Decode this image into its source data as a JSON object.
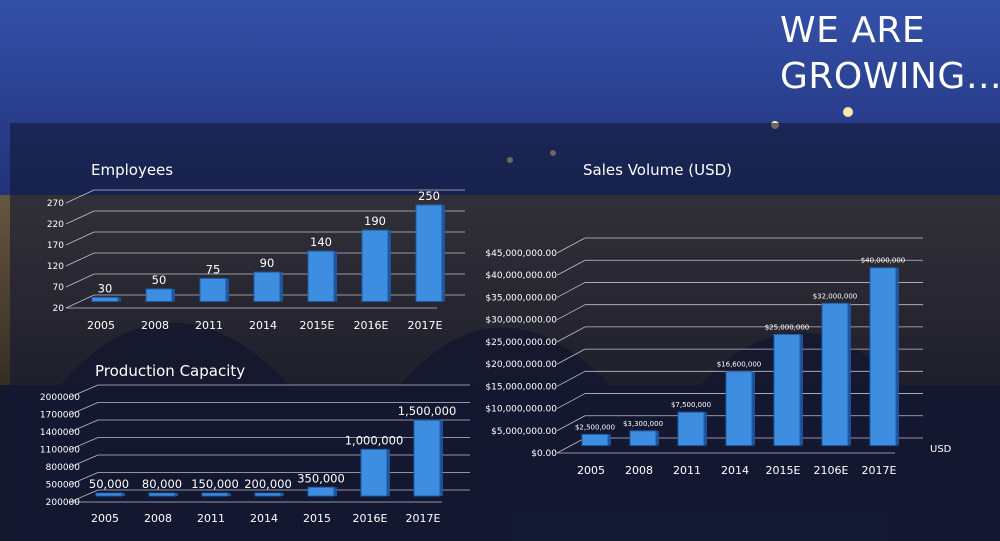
{
  "slide": {
    "title_line1": "WE ARE",
    "title_line2": "GROWING…"
  },
  "colors": {
    "bar_fill": "#3d8de0",
    "bar_edge": "#1f5aa6",
    "grid": "#d8dce6",
    "text": "#ffffff"
  },
  "chart_data": [
    {
      "id": "employees",
      "type": "bar",
      "title": "Employees",
      "categories": [
        "2005",
        "2008",
        "2011",
        "2014",
        "2015E",
        "2016E",
        "2017E"
      ],
      "values": [
        30,
        50,
        75,
        90,
        140,
        190,
        250
      ],
      "data_labels": [
        "30",
        "50",
        "75",
        "90",
        "140",
        "190",
        "250"
      ],
      "yticks": [
        "20",
        "70",
        "120",
        "170",
        "220",
        "270"
      ],
      "ylim": [
        20,
        270
      ],
      "grid": true
    },
    {
      "id": "production",
      "type": "bar",
      "title": "Production Capacity",
      "categories": [
        "2005",
        "2008",
        "2011",
        "2014",
        "2015",
        "2016E",
        "2017E"
      ],
      "values": [
        50000,
        80000,
        150000,
        200000,
        350000,
        1000000,
        1500000
      ],
      "data_labels": [
        "50,000",
        "80,000",
        "150,000",
        "200,000",
        "350,000",
        "1,000,000",
        "1,500,000"
      ],
      "yticks": [
        "200000",
        "500000",
        "800000",
        "1100000",
        "1400000",
        "1700000",
        "2000000"
      ],
      "ylim": [
        200000,
        2000000
      ],
      "grid": true
    },
    {
      "id": "sales",
      "type": "bar",
      "title": "Sales Volume (USD)",
      "categories": [
        "2005",
        "2008",
        "2011",
        "2014",
        "2015E",
        "2106E",
        "2017E"
      ],
      "values": [
        2500000,
        3300000,
        7500000,
        16600000,
        25000000,
        32000000,
        40000000
      ],
      "data_labels": [
        "$2,500,000",
        "$3,300,000",
        "$7,500,000",
        "$16,600,000",
        "$25,000,000",
        "$32,000,000",
        "$40,000,000"
      ],
      "yticks": [
        "$0.00",
        "$5,000,000.00",
        "$10,000,000.00",
        "$15,000,000.00",
        "$20,000,000.00",
        "$25,000,000.00",
        "$30,000,000.00",
        "$35,000,000.00",
        "$40,000,000.00",
        "$45,000,000.00"
      ],
      "ylim": [
        0,
        45000000
      ],
      "unit_label": "USD",
      "grid": true
    }
  ]
}
